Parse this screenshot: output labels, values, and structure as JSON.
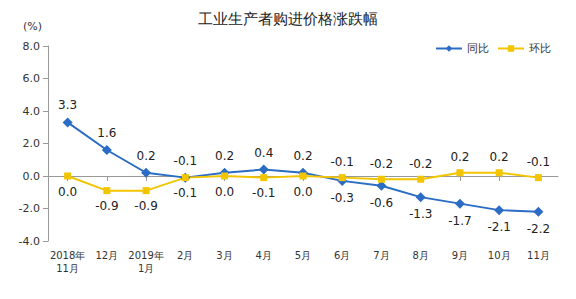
{
  "chart_data": {
    "type": "line",
    "title": "工业生产者购进价格涨跌幅",
    "y_label": "(%)",
    "categories": [
      "2018年\n11月",
      "12月",
      "2019年\n1月",
      "2月",
      "3月",
      "4月",
      "5月",
      "6月",
      "7月",
      "8月",
      "9月",
      "10月",
      "11月"
    ],
    "series": [
      {
        "name": "同比",
        "color": "#2b6cc4",
        "marker": "diamond",
        "values": [
          3.3,
          1.6,
          0.2,
          -0.1,
          0.2,
          0.4,
          0.2,
          -0.3,
          -0.6,
          -1.3,
          -1.7,
          -2.1,
          -2.2
        ],
        "value_labels": [
          "3.3",
          "1.6",
          "0.2",
          "-0.1",
          "0.2",
          "0.4",
          "0.2",
          "-0.3",
          "-0.6",
          "-1.3",
          "-1.7",
          "-2.1",
          "-2.2"
        ]
      },
      {
        "name": "环比",
        "color": "#f2c500",
        "marker": "square",
        "values": [
          0.0,
          -0.9,
          -0.9,
          -0.1,
          0.0,
          -0.1,
          0.0,
          -0.1,
          -0.2,
          -0.2,
          0.2,
          0.2,
          -0.1
        ],
        "value_labels": [
          "0.0",
          "-0.9",
          "-0.9",
          "-0.1",
          "0.0",
          "-0.1",
          "0.0",
          "-0.1",
          "-0.2",
          "-0.2",
          "0.2",
          "0.2",
          "-0.1"
        ]
      }
    ],
    "ylim": [
      -4,
      8
    ],
    "yticks": [
      {
        "value": -4,
        "label": "-4.0"
      },
      {
        "value": -2,
        "label": "-2.0"
      },
      {
        "value": 0,
        "label": "0.0"
      },
      {
        "value": 2,
        "label": "2.0"
      },
      {
        "value": 4,
        "label": "4.0"
      },
      {
        "value": 6,
        "label": "6.0"
      },
      {
        "value": 8,
        "label": "8.0"
      }
    ],
    "grid": false,
    "legend": "top-right",
    "data_labels": true
  }
}
